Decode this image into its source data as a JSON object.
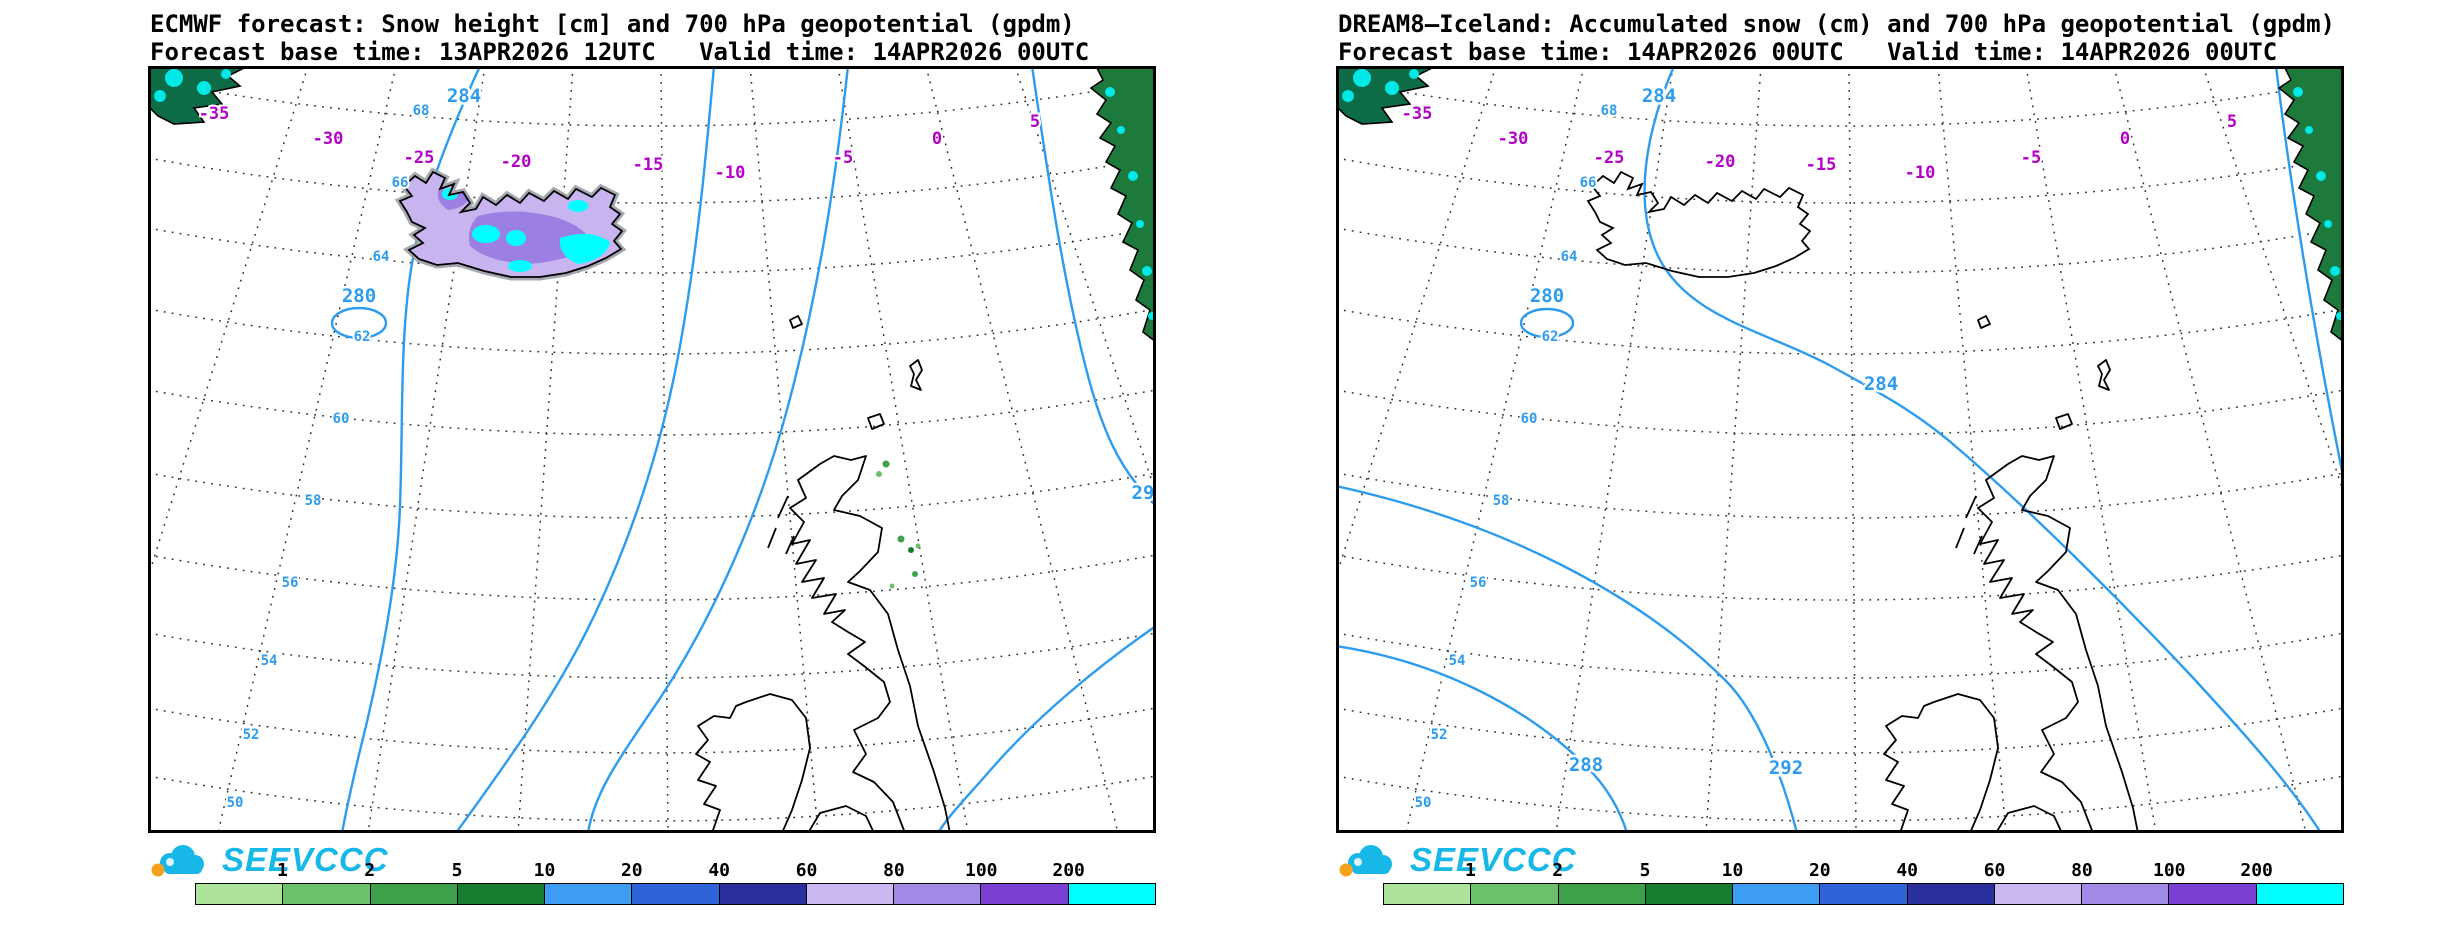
{
  "colors": {
    "contour_blue": "#2d9cee",
    "temp_magenta": "#b400c8",
    "lat_blue": "#2d9cee",
    "logo_cyan": "#17b8e8",
    "logo_orange": "#f6a21c"
  },
  "left_panel": {
    "title": "ECMWF forecast: Snow height [cm] and 700 hPa geopotential (gpdm)",
    "subtitle": "Forecast base time: 13APR2026 12UTC   Valid time: 14APR2026 00UTC",
    "logo_text": "SEEVCCC",
    "contour_labels": {
      "low_280": "280",
      "c284": "284",
      "c292_clipped": "29"
    },
    "temp_labels": [
      "-35",
      "-30",
      "-25",
      "-20",
      "-15",
      "-10",
      "-5",
      "0",
      "5"
    ],
    "lat_labels": [
      "68",
      "66",
      "64",
      "62",
      "60",
      "58",
      "56",
      "54",
      "52",
      "50"
    ]
  },
  "right_panel": {
    "title": "DREAM8–Iceland: Accumulated snow (cm) and 700 hPa geopotential (gpdm)",
    "subtitle": "Forecast base time: 14APR2026 00UTC   Valid time: 14APR2026 00UTC",
    "logo_text": "SEEVCCC",
    "contour_labels": {
      "low_280": "280",
      "c284_top": "284",
      "c284_mid": "284",
      "c288": "288",
      "c292": "292"
    },
    "temp_labels": [
      "-35",
      "-30",
      "-25",
      "-20",
      "-15",
      "-10",
      "-5",
      "0",
      "5"
    ],
    "lat_labels": [
      "68",
      "66",
      "64",
      "62",
      "60",
      "58",
      "56",
      "54",
      "52",
      "50"
    ]
  },
  "colorbar": {
    "labels": [
      "1",
      "2",
      "5",
      "10",
      "20",
      "40",
      "60",
      "80",
      "100",
      "200"
    ],
    "colors": [
      "#aee39b",
      "#6cc06a",
      "#3fa04c",
      "#187c2e",
      "#3d9df2",
      "#2f63d8",
      "#2b2f9e",
      "#cbb9f2",
      "#a189e6",
      "#7b3fd1",
      "#00ffff"
    ]
  }
}
